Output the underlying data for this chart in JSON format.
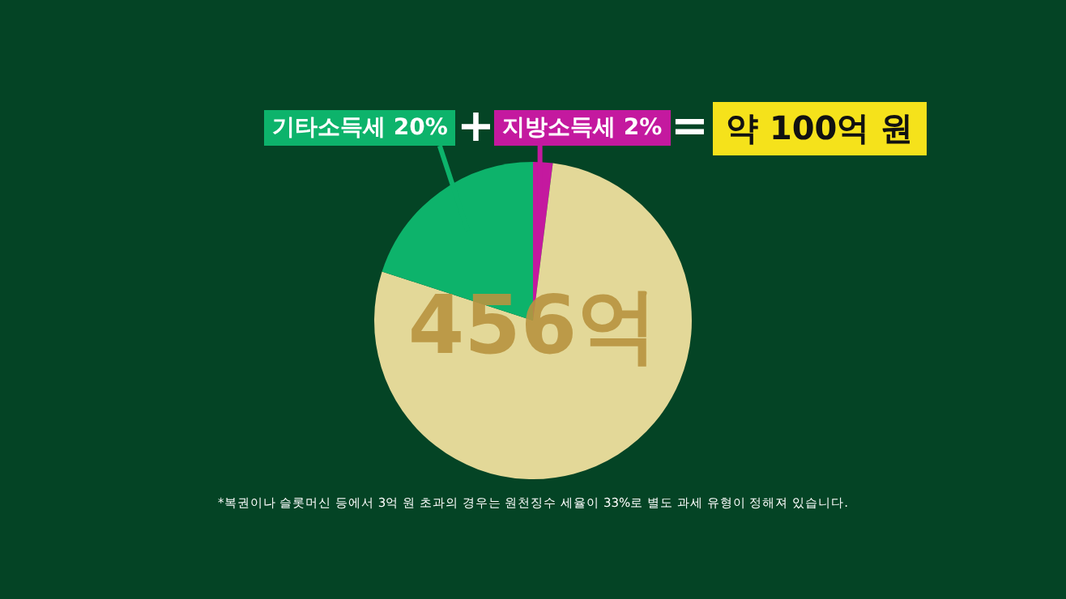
{
  "chart_data": {
    "type": "pie",
    "categories": [
      "지방소득세",
      null,
      "기타소득세"
    ],
    "values": [
      2,
      78,
      20
    ],
    "value_labels": [
      "2%",
      null,
      "20%"
    ],
    "colors": [
      "#c4199f",
      "#e3d898",
      "#0db36b"
    ],
    "legend": false,
    "annotations": [
      "+",
      "=",
      "약 100억 원",
      "456억",
      "*복권이나 슬롯머신 등에서 3억 원 초과의 경우는 원천징수 세율이 33%로 별도 과세 유형이 정해져 있습니다."
    ]
  }
}
